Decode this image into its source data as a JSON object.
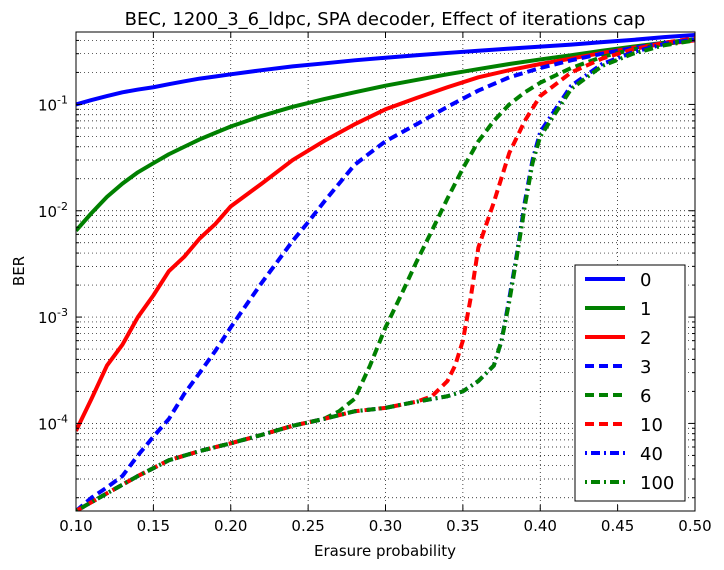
{
  "chart_data": {
    "type": "line",
    "title": "BEC, 1200_3_6_ldpc, SPA decoder, Effect of iterations cap",
    "xlabel": "Erasure probability",
    "ylabel": "BER",
    "xlim": [
      0.1,
      0.5
    ],
    "ylim": [
      1.5e-05,
      0.48
    ],
    "yscale": "log",
    "grid": true,
    "legend_position": "lower-right",
    "x_ticks": [
      "0.10",
      "0.15",
      "0.20",
      "0.25",
      "0.30",
      "0.35",
      "0.40",
      "0.45",
      "0.50"
    ],
    "y_ticks": [
      {
        "base": "10",
        "exp": "-4",
        "value": 0.0001
      },
      {
        "base": "10",
        "exp": "-3",
        "value": 0.001
      },
      {
        "base": "10",
        "exp": "-2",
        "value": 0.01
      },
      {
        "base": "10",
        "exp": "-1",
        "value": 0.1
      }
    ],
    "series": [
      {
        "name": "0",
        "color": "#0000ff",
        "dash": "solid",
        "x": [
          0.1,
          0.11,
          0.12,
          0.13,
          0.14,
          0.15,
          0.16,
          0.17,
          0.18,
          0.19,
          0.2,
          0.22,
          0.24,
          0.26,
          0.28,
          0.3,
          0.32,
          0.34,
          0.36,
          0.38,
          0.4,
          0.42,
          0.44,
          0.46,
          0.48,
          0.5
        ],
        "y": [
          0.1,
          0.11,
          0.12,
          0.13,
          0.138,
          0.145,
          0.155,
          0.165,
          0.175,
          0.183,
          0.192,
          0.21,
          0.228,
          0.243,
          0.26,
          0.275,
          0.29,
          0.305,
          0.32,
          0.335,
          0.35,
          0.365,
          0.385,
          0.405,
          0.43,
          0.45
        ]
      },
      {
        "name": "1",
        "color": "#008000",
        "dash": "solid",
        "x": [
          0.1,
          0.11,
          0.12,
          0.13,
          0.14,
          0.15,
          0.16,
          0.17,
          0.18,
          0.19,
          0.2,
          0.22,
          0.24,
          0.26,
          0.28,
          0.3,
          0.32,
          0.34,
          0.36,
          0.38,
          0.4,
          0.42,
          0.44,
          0.46,
          0.48,
          0.5
        ],
        "y": [
          0.0065,
          0.0095,
          0.0135,
          0.018,
          0.023,
          0.028,
          0.034,
          0.04,
          0.047,
          0.054,
          0.062,
          0.078,
          0.095,
          0.112,
          0.13,
          0.15,
          0.17,
          0.192,
          0.215,
          0.24,
          0.265,
          0.29,
          0.32,
          0.35,
          0.38,
          0.41
        ]
      },
      {
        "name": "2",
        "color": "#ff0000",
        "dash": "solid",
        "x": [
          0.1,
          0.11,
          0.12,
          0.13,
          0.14,
          0.15,
          0.16,
          0.17,
          0.18,
          0.19,
          0.2,
          0.22,
          0.24,
          0.26,
          0.28,
          0.3,
          0.32,
          0.34,
          0.36,
          0.38,
          0.4,
          0.42,
          0.44,
          0.46,
          0.48,
          0.5
        ],
        "y": [
          8.5e-05,
          0.00017,
          0.00035,
          0.00055,
          0.001,
          0.0016,
          0.0027,
          0.0037,
          0.0055,
          0.0075,
          0.011,
          0.018,
          0.03,
          0.045,
          0.065,
          0.09,
          0.115,
          0.145,
          0.18,
          0.21,
          0.24,
          0.27,
          0.305,
          0.34,
          0.37,
          0.4
        ]
      },
      {
        "name": "3",
        "color": "#0000ff",
        "dash": "dashed",
        "x": [
          0.1,
          0.11,
          0.12,
          0.13,
          0.14,
          0.15,
          0.16,
          0.17,
          0.18,
          0.19,
          0.2,
          0.21,
          0.22,
          0.23,
          0.24,
          0.25,
          0.26,
          0.27,
          0.28,
          0.29,
          0.3,
          0.32,
          0.34,
          0.36,
          0.38,
          0.4,
          0.42,
          0.44,
          0.46,
          0.48,
          0.5
        ],
        "y": [
          1.5e-05,
          2e-05,
          2.5e-05,
          3.2e-05,
          5e-05,
          7.5e-05,
          0.00011,
          0.00019,
          0.0003,
          0.00048,
          0.0008,
          0.0013,
          0.0021,
          0.0033,
          0.0052,
          0.0078,
          0.012,
          0.018,
          0.027,
          0.035,
          0.045,
          0.065,
          0.095,
          0.135,
          0.18,
          0.22,
          0.26,
          0.3,
          0.34,
          0.38,
          0.41
        ]
      },
      {
        "name": "6",
        "color": "#008000",
        "dash": "dashed",
        "x": [
          0.1,
          0.12,
          0.14,
          0.16,
          0.18,
          0.2,
          0.22,
          0.24,
          0.26,
          0.27,
          0.28,
          0.29,
          0.3,
          0.31,
          0.32,
          0.33,
          0.34,
          0.35,
          0.36,
          0.37,
          0.38,
          0.39,
          0.4,
          0.42,
          0.44,
          0.46,
          0.48,
          0.5
        ],
        "y": [
          1.5e-05,
          2.2e-05,
          3.2e-05,
          4.5e-05,
          5.5e-05,
          6.5e-05,
          7.8e-05,
          9.5e-05,
          0.00011,
          0.00013,
          0.00017,
          0.00035,
          0.0008,
          0.0016,
          0.0033,
          0.0065,
          0.013,
          0.025,
          0.045,
          0.07,
          0.1,
          0.13,
          0.16,
          0.22,
          0.28,
          0.33,
          0.37,
          0.41
        ]
      },
      {
        "name": "10",
        "color": "#ff0000",
        "dash": "dashed",
        "x": [
          0.1,
          0.12,
          0.14,
          0.16,
          0.18,
          0.2,
          0.22,
          0.24,
          0.26,
          0.28,
          0.3,
          0.32,
          0.33,
          0.34,
          0.345,
          0.35,
          0.355,
          0.36,
          0.37,
          0.38,
          0.39,
          0.4,
          0.42,
          0.44,
          0.46,
          0.48,
          0.5
        ],
        "y": [
          1.5e-05,
          2.2e-05,
          3.2e-05,
          4.5e-05,
          5.5e-05,
          6.5e-05,
          7.8e-05,
          9.5e-05,
          0.00011,
          0.00013,
          0.00014,
          0.00016,
          0.00018,
          0.00025,
          0.00035,
          0.0006,
          0.0015,
          0.0045,
          0.012,
          0.035,
          0.07,
          0.12,
          0.2,
          0.27,
          0.33,
          0.38,
          0.42
        ]
      },
      {
        "name": "40",
        "color": "#0000ff",
        "dash": "dotdash",
        "x": [
          0.1,
          0.12,
          0.14,
          0.16,
          0.18,
          0.2,
          0.22,
          0.24,
          0.26,
          0.28,
          0.3,
          0.32,
          0.34,
          0.35,
          0.36,
          0.37,
          0.375,
          0.38,
          0.385,
          0.39,
          0.395,
          0.4,
          0.42,
          0.44,
          0.46,
          0.48,
          0.5
        ],
        "y": [
          1.5e-05,
          2.2e-05,
          3.2e-05,
          4.5e-05,
          5.5e-05,
          6.5e-05,
          7.8e-05,
          9.5e-05,
          0.00011,
          0.00013,
          0.00014,
          0.00016,
          0.00018,
          0.0002,
          0.00025,
          0.00035,
          0.0006,
          0.0015,
          0.004,
          0.012,
          0.03,
          0.055,
          0.15,
          0.24,
          0.31,
          0.37,
          0.41
        ]
      },
      {
        "name": "100",
        "color": "#008000",
        "dash": "dotdash",
        "x": [
          0.1,
          0.12,
          0.14,
          0.16,
          0.18,
          0.2,
          0.22,
          0.24,
          0.26,
          0.28,
          0.3,
          0.32,
          0.34,
          0.35,
          0.36,
          0.37,
          0.375,
          0.38,
          0.385,
          0.39,
          0.395,
          0.4,
          0.42,
          0.44,
          0.46,
          0.48,
          0.5
        ],
        "y": [
          1.5e-05,
          2.2e-05,
          3.2e-05,
          4.5e-05,
          5.5e-05,
          6.5e-05,
          7.8e-05,
          9.5e-05,
          0.00011,
          0.00013,
          0.00014,
          0.00016,
          0.00018,
          0.0002,
          0.00025,
          0.00035,
          0.0006,
          0.0014,
          0.0038,
          0.011,
          0.028,
          0.05,
          0.14,
          0.23,
          0.3,
          0.36,
          0.4
        ]
      }
    ]
  }
}
